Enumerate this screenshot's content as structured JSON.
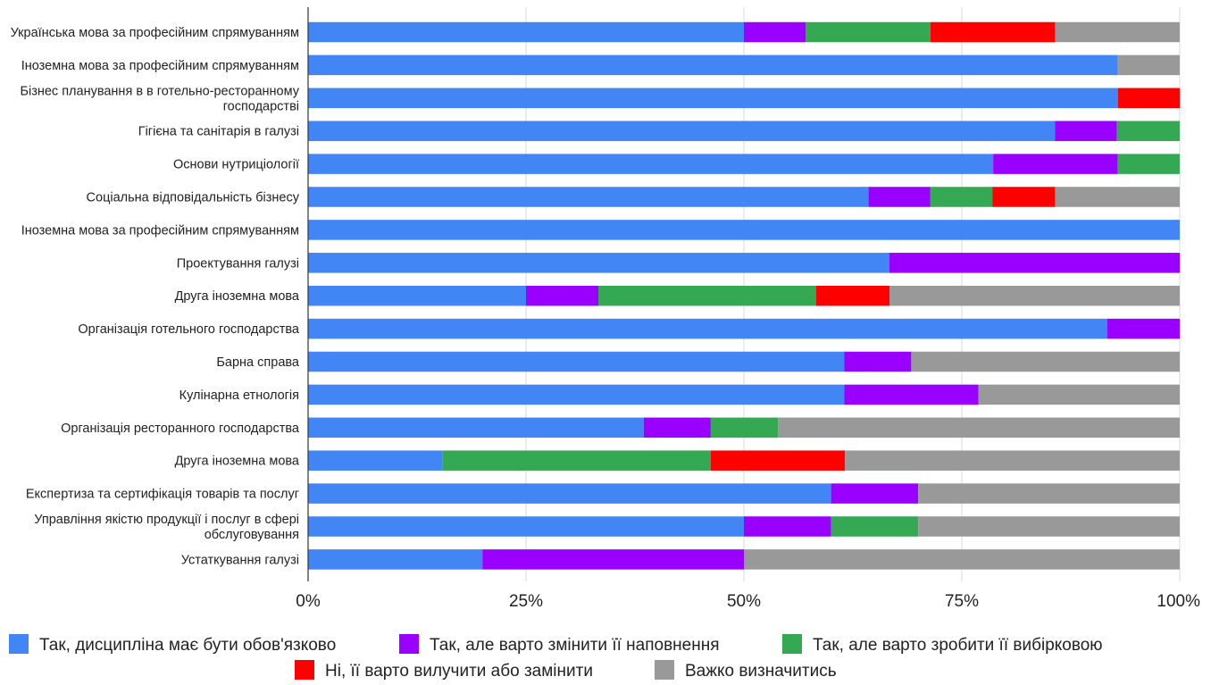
{
  "chart_data": {
    "type": "bar",
    "orientation": "horizontal",
    "stacked": "percent",
    "categories": [
      [
        "Українська мова за професійним спрямуванням"
      ],
      [
        "Іноземна мова за професійним спрямуванням"
      ],
      [
        "Бізнес планування в в готельно-ресторанному",
        "господарстві"
      ],
      [
        "Гігієна та санітарія в галузі"
      ],
      [
        "Основи нутриціології"
      ],
      [
        "Соціальна відповідальність бізнесу"
      ],
      [
        "Іноземна мова за професійним спрямуванням"
      ],
      [
        "Проектування галузі"
      ],
      [
        "Друга іноземна мова"
      ],
      [
        "Організація готельного господарства"
      ],
      [
        "Барна справа"
      ],
      [
        "Кулінарна етнологія"
      ],
      [
        "Організація ресторанного господарства"
      ],
      [
        "Друга іноземна мова"
      ],
      [
        "Експертиза та сертифікація товарів та послуг"
      ],
      [
        "Управління якістю продукції і послуг в сфері",
        "обслуговування"
      ],
      [
        "Устаткування галузі"
      ]
    ],
    "series": [
      {
        "name": "Так, дисципліна має бути обов'язково",
        "color": "#4285f4",
        "values": [
          50,
          92.9,
          92.9,
          85.7,
          78.6,
          64.3,
          100,
          66.7,
          25,
          91.7,
          61.5,
          61.5,
          38.5,
          15.4,
          60,
          50,
          20
        ]
      },
      {
        "name": "Так, але варто змінити її наповнення",
        "color": "#9900ff",
        "values": [
          7.1,
          0,
          0,
          7.1,
          14.3,
          7.1,
          0,
          33.3,
          8.3,
          8.3,
          7.7,
          15.4,
          7.7,
          0,
          10,
          10,
          30
        ]
      },
      {
        "name": "Так, але варто зробити її вибірковою",
        "color": "#34a853",
        "values": [
          14.3,
          0,
          0,
          7.2,
          7.1,
          7.1,
          0,
          0,
          25,
          0,
          0,
          0,
          7.7,
          30.8,
          0,
          10,
          0
        ]
      },
      {
        "name": "Ні, її варто вилучити або замінити",
        "color": "#ff0000",
        "values": [
          14.3,
          0,
          7.1,
          0,
          0,
          7.2,
          0,
          0,
          8.4,
          0,
          0,
          0,
          0,
          15.4,
          0,
          0,
          0
        ]
      },
      {
        "name": "Важко визначитись",
        "color": "#999999",
        "values": [
          14.3,
          7.1,
          0,
          0,
          0,
          14.3,
          0,
          0,
          33.3,
          0,
          30.8,
          23.1,
          46.1,
          38.4,
          30,
          30,
          50
        ]
      }
    ],
    "x_ticks": [
      "0%",
      "25%",
      "50%",
      "75%",
      "100%"
    ],
    "xlim": [
      0,
      100
    ],
    "grid": true,
    "legend_position": "bottom"
  }
}
